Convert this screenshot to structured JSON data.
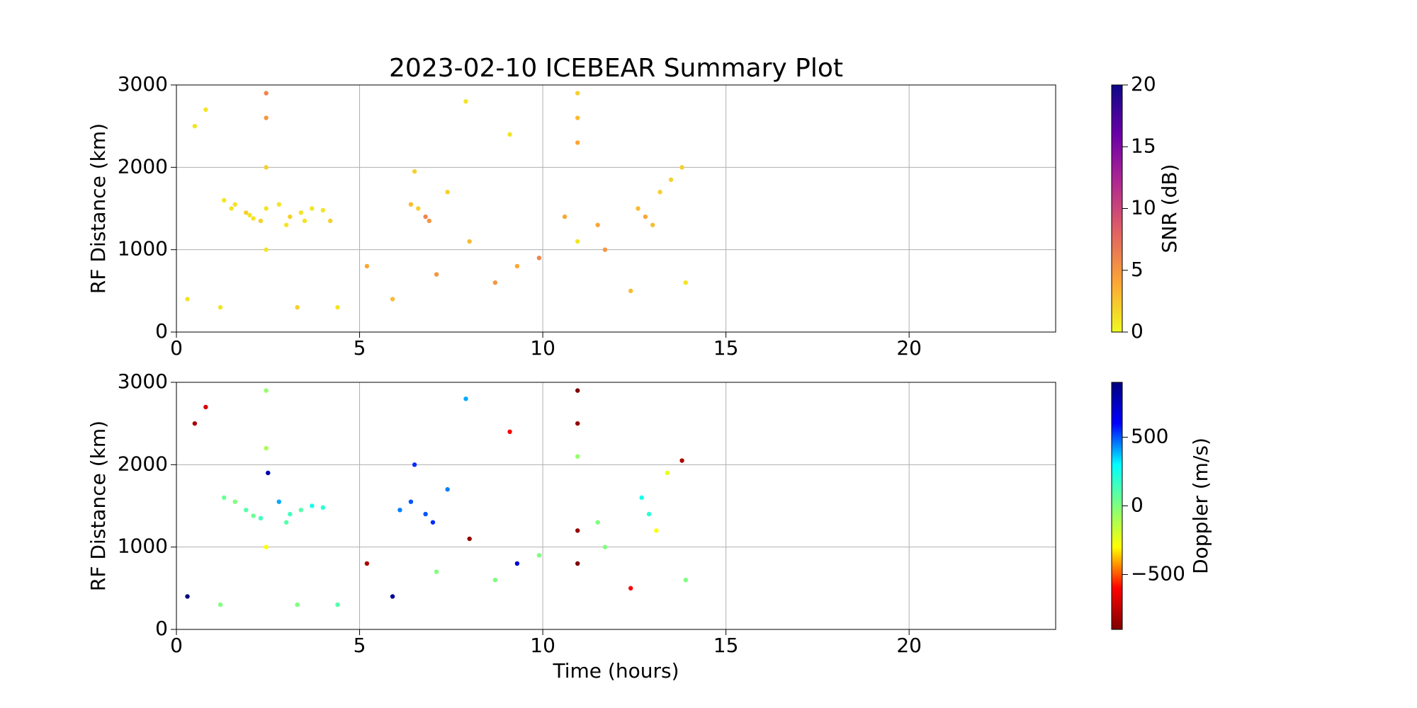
{
  "chart_data": [
    {
      "type": "scatter",
      "title": "2023-02-10 ICEBEAR Summary Plot",
      "ylabel": "RF Distance (km)",
      "x": [
        1.3,
        1.6,
        1.9,
        2.1,
        2.3,
        1.5,
        2.0,
        2.45,
        2.45,
        2.45,
        2.45,
        2.45,
        2.8,
        3.1,
        3.4,
        3.7,
        4.0,
        4.2,
        3.0,
        3.5,
        6.4,
        6.6,
        6.8,
        6.9,
        7.4,
        6.5,
        10.95,
        10.95,
        10.95,
        10.95,
        12.6,
        12.8,
        13.0,
        13.2,
        13.5,
        13.8,
        0.3,
        0.5,
        1.2,
        3.3,
        4.4,
        5.2,
        5.9,
        7.1,
        8.0,
        8.7,
        9.3,
        9.9,
        10.6,
        11.7,
        12.4,
        13.9,
        9.1,
        7.9,
        11.5,
        0.8
      ],
      "y": [
        1600,
        1550,
        1450,
        1380,
        1350,
        1500,
        1420,
        2900,
        2600,
        2000,
        1500,
        1000,
        1550,
        1400,
        1450,
        1500,
        1480,
        1350,
        1300,
        1350,
        1550,
        1500,
        1400,
        1350,
        1700,
        1950,
        2900,
        2600,
        2300,
        1100,
        1500,
        1400,
        1300,
        1700,
        1850,
        2000,
        400,
        2500,
        300,
        300,
        300,
        800,
        400,
        700,
        1100,
        600,
        800,
        900,
        1400,
        1000,
        500,
        600,
        2400,
        2800,
        1300,
        2700
      ],
      "c": [
        1,
        1,
        2,
        1,
        2,
        1,
        1,
        6,
        5,
        2,
        1,
        1,
        1,
        2,
        1,
        1,
        1,
        2,
        1,
        1,
        3,
        2,
        6,
        5,
        2,
        2,
        2,
        3,
        4,
        1,
        3,
        4,
        3,
        2,
        2,
        2,
        1,
        1,
        1,
        2,
        1,
        4,
        3,
        5,
        3,
        5,
        4,
        6,
        4,
        5,
        3,
        1,
        1,
        1,
        4,
        1
      ],
      "xlim": [
        0,
        24
      ],
      "ylim": [
        0,
        3000
      ],
      "xticks": [
        0,
        5,
        10,
        15,
        20
      ],
      "yticks": [
        0,
        1000,
        2000,
        3000
      ],
      "grid": true,
      "clabel": "SNR (dB)",
      "clim": [
        0,
        20
      ],
      "cticks": [
        0,
        5,
        10,
        15,
        20
      ],
      "colormap": [
        "#f0f921",
        "#fca636",
        "#e16462",
        "#b12a90",
        "#6a00a8",
        "#0d0887"
      ]
    },
    {
      "type": "scatter",
      "xlabel": "Time (hours)",
      "ylabel": "RF Distance (km)",
      "x": [
        1.3,
        1.6,
        1.9,
        2.1,
        2.3,
        2.45,
        2.45,
        2.45,
        2.5,
        2.8,
        3.1,
        3.4,
        3.7,
        4.0,
        3.0,
        6.1,
        6.4,
        6.5,
        6.8,
        7.0,
        7.4,
        10.95,
        10.95,
        10.95,
        10.95,
        10.95,
        12.7,
        12.9,
        13.1,
        13.4,
        13.8,
        0.3,
        0.8,
        1.2,
        3.3,
        5.2,
        5.9,
        7.1,
        8.0,
        8.7,
        9.3,
        9.9,
        11.7,
        12.4,
        13.9,
        9.1,
        7.9,
        11.5,
        4.4,
        0.5
      ],
      "y": [
        1600,
        1550,
        1450,
        1380,
        1350,
        2900,
        2200,
        1000,
        1900,
        1550,
        1400,
        1450,
        1500,
        1480,
        1300,
        1450,
        1550,
        2000,
        1400,
        1300,
        1700,
        2900,
        2500,
        2100,
        1200,
        800,
        1600,
        1400,
        1200,
        1900,
        2050,
        400,
        2700,
        300,
        300,
        800,
        400,
        700,
        1100,
        600,
        800,
        900,
        1000,
        500,
        600,
        2400,
        2800,
        1300,
        300,
        2500
      ],
      "c": [
        50,
        0,
        100,
        50,
        150,
        -50,
        -100,
        -300,
        800,
        400,
        150,
        100,
        250,
        200,
        100,
        450,
        500,
        550,
        500,
        550,
        450,
        -900,
        -850,
        -50,
        -850,
        -900,
        250,
        200,
        -300,
        -250,
        -800,
        900,
        -700,
        0,
        0,
        -800,
        850,
        0,
        -850,
        0,
        700,
        0,
        0,
        -600,
        0,
        -600,
        400,
        0,
        100,
        -800
      ],
      "xlim": [
        0,
        24
      ],
      "ylim": [
        0,
        3000
      ],
      "xticks": [
        0,
        5,
        10,
        15,
        20
      ],
      "yticks": [
        0,
        1000,
        2000,
        3000
      ],
      "grid": true,
      "clabel": "Doppler (m/s)",
      "clim": [
        -900,
        900
      ],
      "cticks": [
        {
          "value": -500,
          "label": "−500"
        },
        0,
        500
      ],
      "colormap": [
        "#7f0000",
        "#ff0000",
        "#ffff00",
        "#7fff7f",
        "#00ffff",
        "#0000ff",
        "#00007f"
      ]
    }
  ]
}
